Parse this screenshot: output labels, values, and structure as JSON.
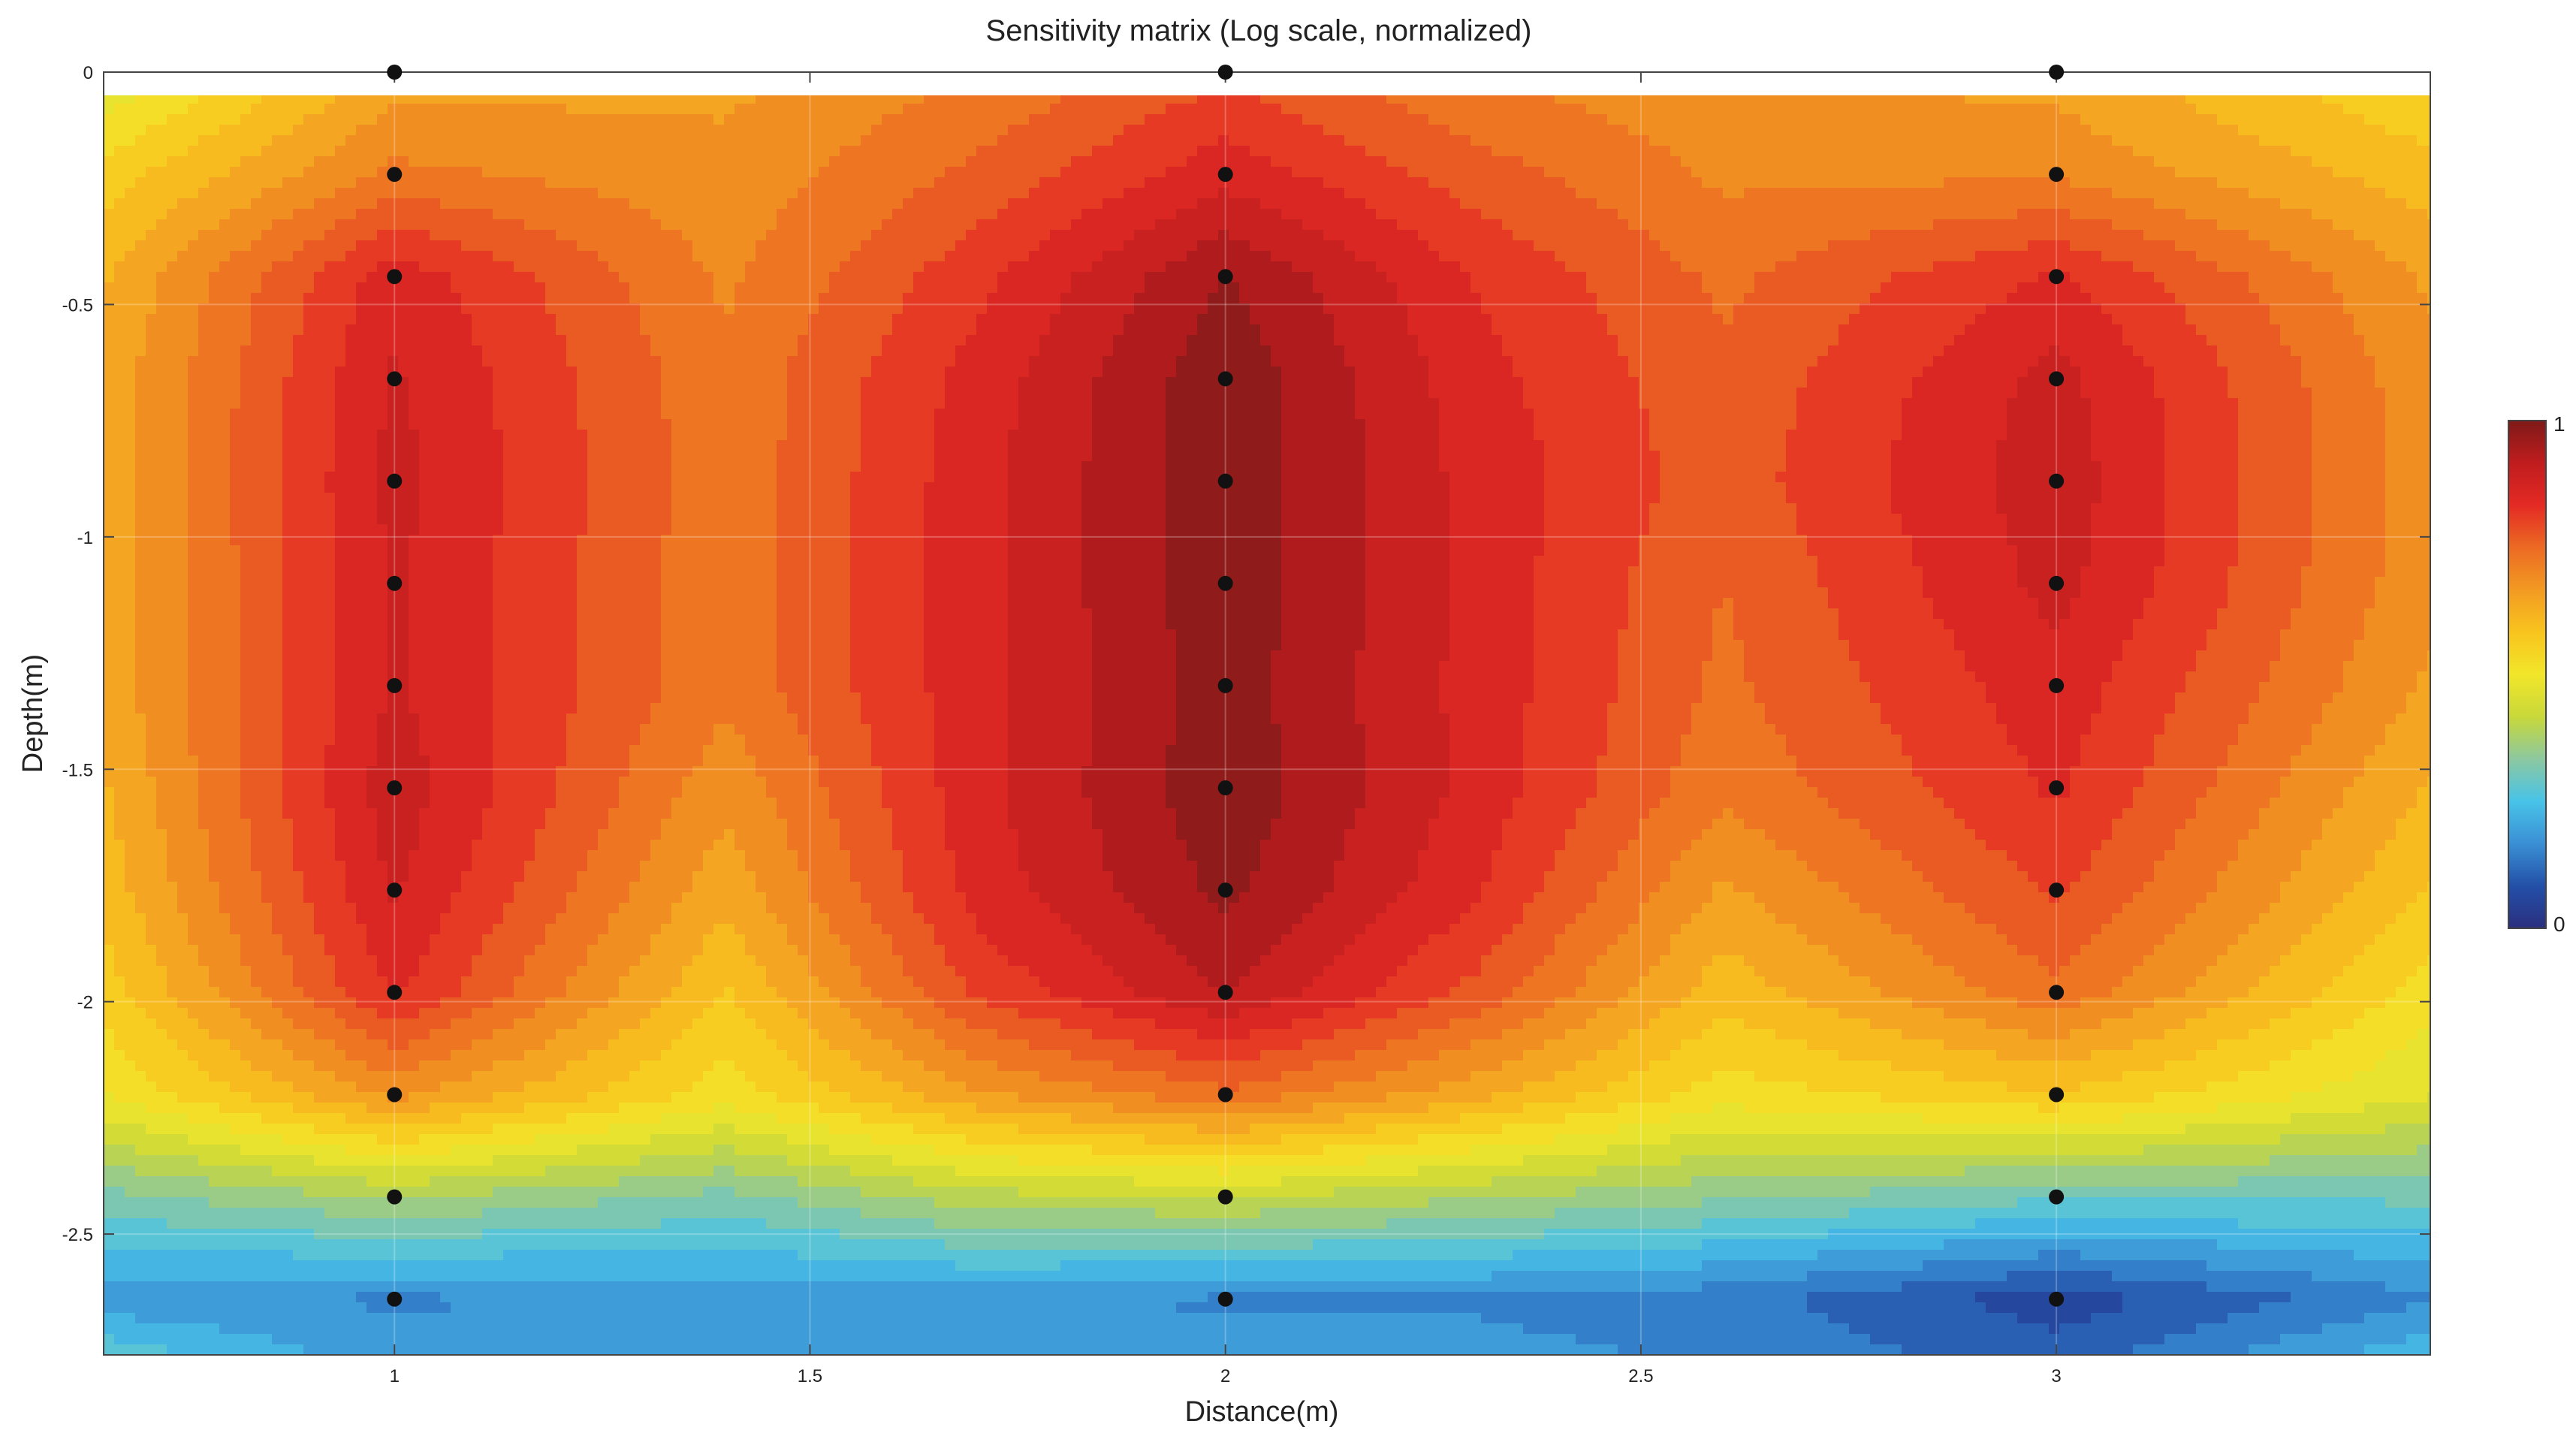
{
  "chart_data": {
    "type": "heatmap",
    "title": "Sensitivity matrix (Log scale, normalized)",
    "xlabel": "Distance(m)",
    "ylabel": "Depth(m)",
    "xlim": [
      0.65,
      3.45
    ],
    "ylim": [
      -2.76,
      0
    ],
    "xticks": [
      1,
      1.5,
      2,
      2.5,
      3
    ],
    "xtick_labels": [
      "1",
      "1.5",
      "2",
      "2.5",
      "3"
    ],
    "yticks": [
      0,
      -0.5,
      -1,
      -1.5,
      -2,
      -2.5
    ],
    "ytick_labels": [
      "0",
      "-0.5",
      "-1",
      "-1.5",
      "-2",
      "-2.5"
    ],
    "colorbar": {
      "min_label": "0",
      "max_label": "1",
      "min": 0,
      "max": 1
    },
    "colormap": [
      "#2b2f7e",
      "#2350a8",
      "#3a8fd4",
      "#48c3e8",
      "#8cc8a0",
      "#c8d83a",
      "#f2e62a",
      "#f8c41e",
      "#f29a22",
      "#ec6a23",
      "#e42a24",
      "#c01c1e",
      "#7e1a18"
    ],
    "grid": true,
    "levels": 24,
    "x": [
      0.65,
      1.0,
      1.4,
      1.7,
      2.0,
      2.3,
      2.6,
      3.0,
      3.45
    ],
    "y": [
      -0.05,
      -0.22,
      -0.44,
      -0.66,
      -0.88,
      -1.1,
      -1.32,
      -1.54,
      -1.76,
      -1.98,
      -2.2,
      -2.42,
      -2.64,
      -2.76
    ],
    "z": [
      [
        0.48,
        0.66,
        0.66,
        0.72,
        0.8,
        0.72,
        0.68,
        0.66,
        0.55
      ],
      [
        0.56,
        0.72,
        0.68,
        0.76,
        0.86,
        0.77,
        0.7,
        0.7,
        0.6
      ],
      [
        0.62,
        0.86,
        0.7,
        0.82,
        0.96,
        0.83,
        0.74,
        0.84,
        0.66
      ],
      [
        0.64,
        0.88,
        0.72,
        0.85,
        0.99,
        0.85,
        0.76,
        0.89,
        0.68
      ],
      [
        0.64,
        0.89,
        0.72,
        0.86,
        0.99,
        0.86,
        0.77,
        0.9,
        0.68
      ],
      [
        0.64,
        0.88,
        0.72,
        0.86,
        0.99,
        0.86,
        0.75,
        0.89,
        0.68
      ],
      [
        0.64,
        0.88,
        0.72,
        0.86,
        0.98,
        0.86,
        0.74,
        0.86,
        0.66
      ],
      [
        0.62,
        0.9,
        0.68,
        0.86,
        0.99,
        0.86,
        0.72,
        0.84,
        0.62
      ],
      [
        0.6,
        0.88,
        0.64,
        0.85,
        0.97,
        0.84,
        0.66,
        0.8,
        0.58
      ],
      [
        0.56,
        0.84,
        0.58,
        0.8,
        0.92,
        0.78,
        0.6,
        0.74,
        0.52
      ],
      [
        0.5,
        0.68,
        0.52,
        0.66,
        0.74,
        0.64,
        0.52,
        0.58,
        0.46
      ],
      [
        0.32,
        0.38,
        0.32,
        0.4,
        0.42,
        0.38,
        0.34,
        0.3,
        0.3
      ],
      [
        0.18,
        0.16,
        0.18,
        0.18,
        0.16,
        0.16,
        0.14,
        0.06,
        0.16
      ],
      [
        0.28,
        0.18,
        0.2,
        0.18,
        0.18,
        0.18,
        0.16,
        0.1,
        0.24
      ]
    ],
    "electrodes": {
      "x": [
        1,
        2,
        3
      ],
      "depths": [
        0,
        -0.22,
        -0.44,
        -0.66,
        -0.88,
        -1.1,
        -1.32,
        -1.54,
        -1.76,
        -1.98,
        -2.2,
        -2.42,
        -2.64
      ]
    }
  }
}
